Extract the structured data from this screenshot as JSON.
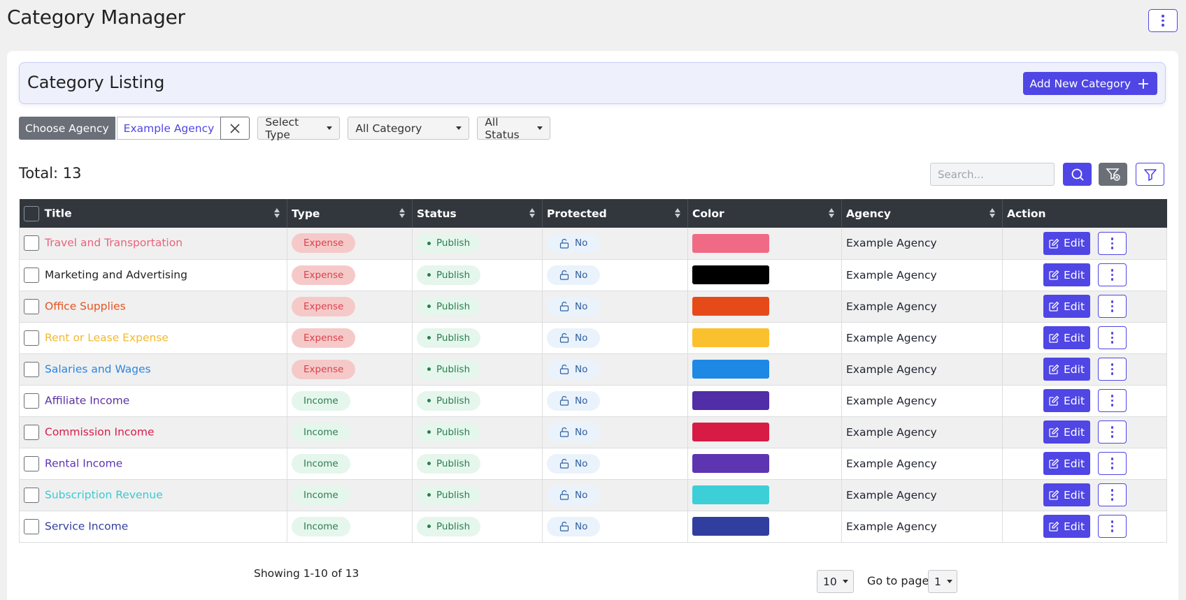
{
  "page": {
    "title": "Category Manager"
  },
  "listing": {
    "title": "Category Listing",
    "add_label": "Add New Category"
  },
  "filters": {
    "choose_agency": "Choose Agency",
    "agency_value": "Example Agency",
    "type_label": "Select Type",
    "category_label": "All Category",
    "status_label": "All Status"
  },
  "summary": {
    "total": "Total: 13"
  },
  "search": {
    "placeholder": "Search..."
  },
  "table": {
    "headers": [
      "Title",
      "Type",
      "Status",
      "Protected",
      "Color",
      "Agency",
      "Action"
    ],
    "edit_label": "Edit",
    "rows": [
      {
        "title": "Travel and Transportation",
        "title_color": "#e8637a",
        "type": "Expense",
        "status": "Publish",
        "protected": "No",
        "color": "#f06a86",
        "agency": "Example Agency"
      },
      {
        "title": "Marketing and Advertising",
        "title_color": "#222222",
        "type": "Expense",
        "status": "Publish",
        "protected": "No",
        "color": "#000000",
        "agency": "Example Agency"
      },
      {
        "title": "Office Supplies",
        "title_color": "#e4531f",
        "type": "Expense",
        "status": "Publish",
        "protected": "No",
        "color": "#e64a19",
        "agency": "Example Agency"
      },
      {
        "title": "Rent or Lease Expense",
        "title_color": "#f5b82e",
        "type": "Expense",
        "status": "Publish",
        "protected": "No",
        "color": "#fbc02d",
        "agency": "Example Agency"
      },
      {
        "title": "Salaries and Wages",
        "title_color": "#2a85e0",
        "type": "Expense",
        "status": "Publish",
        "protected": "No",
        "color": "#1e88e5",
        "agency": "Example Agency"
      },
      {
        "title": "Affiliate Income",
        "title_color": "#5a32a3",
        "type": "Income",
        "status": "Publish",
        "protected": "No",
        "color": "#512da8",
        "agency": "Example Agency"
      },
      {
        "title": "Commission Income",
        "title_color": "#d81b48",
        "type": "Income",
        "status": "Publish",
        "protected": "No",
        "color": "#d81b45",
        "agency": "Example Agency"
      },
      {
        "title": "Rental Income",
        "title_color": "#5e35b1",
        "type": "Income",
        "status": "Publish",
        "protected": "No",
        "color": "#5e35b1",
        "agency": "Example Agency"
      },
      {
        "title": "Subscription Revenue",
        "title_color": "#3cc8d0",
        "type": "Income",
        "status": "Publish",
        "protected": "No",
        "color": "#3ccfd8",
        "agency": "Example Agency"
      },
      {
        "title": "Service Income",
        "title_color": "#303f9f",
        "type": "Income",
        "status": "Publish",
        "protected": "No",
        "color": "#303f9f",
        "agency": "Example Agency"
      }
    ]
  },
  "pagination": {
    "showing": "Showing 1-10 of 13",
    "per_page": "10",
    "goto_label": "Go to page",
    "page": "1"
  }
}
